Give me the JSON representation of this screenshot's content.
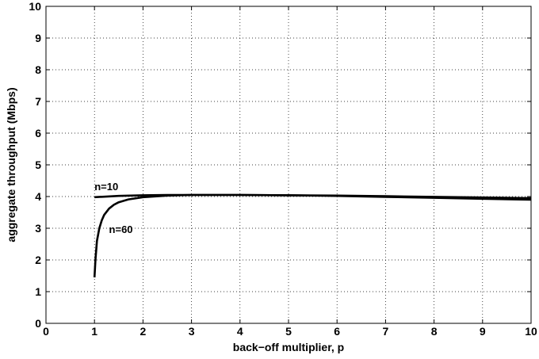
{
  "chart_data": {
    "type": "line",
    "title": "",
    "xlabel": "back−off multiplier, p",
    "ylabel": "aggregate throughput (Mbps)",
    "xlim": [
      0,
      10
    ],
    "ylim": [
      0,
      10
    ],
    "xticks": [
      "0",
      "1",
      "2",
      "3",
      "4",
      "5",
      "6",
      "7",
      "8",
      "9",
      "10"
    ],
    "yticks": [
      "0",
      "1",
      "2",
      "3",
      "4",
      "5",
      "6",
      "7",
      "8",
      "9",
      "10"
    ],
    "grid": true,
    "series": [
      {
        "label": "n=10",
        "x": [
          1.0,
          1.5,
          2.0,
          2.5,
          3.0,
          3.5,
          4.0,
          5.0,
          6.0,
          7.0,
          8.0,
          9.0,
          10.0
        ],
        "y": [
          3.98,
          4.02,
          4.04,
          4.05,
          4.05,
          4.05,
          4.05,
          4.04,
          4.03,
          4.01,
          3.99,
          3.97,
          3.95
        ]
      },
      {
        "label": "n=60",
        "x": [
          1.0,
          1.02,
          1.05,
          1.1,
          1.15,
          1.2,
          1.3,
          1.4,
          1.5,
          1.7,
          2.0,
          2.5,
          3.0,
          3.5,
          4.0,
          5.0,
          6.0,
          7.0,
          8.0,
          9.0,
          10.0
        ],
        "y": [
          1.45,
          2.0,
          2.6,
          3.0,
          3.25,
          3.42,
          3.62,
          3.74,
          3.82,
          3.91,
          3.98,
          4.03,
          4.05,
          4.05,
          4.05,
          4.04,
          4.02,
          3.99,
          3.96,
          3.93,
          3.9
        ]
      }
    ],
    "annotations": [
      {
        "text": "n=10",
        "x": 1.0,
        "y": 4.2
      },
      {
        "text": "n=60",
        "x": 1.3,
        "y": 2.85
      }
    ]
  }
}
